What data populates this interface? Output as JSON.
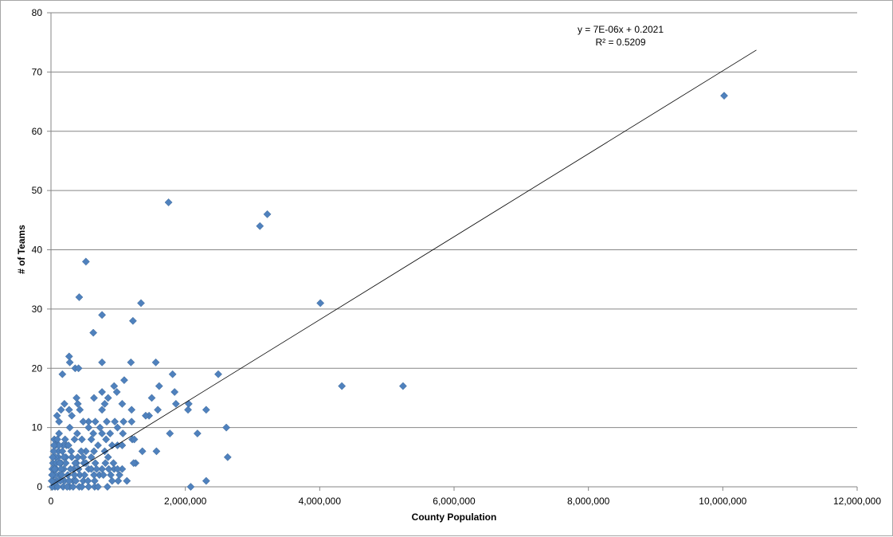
{
  "chart_data": {
    "type": "scatter",
    "xlabel": "County Population",
    "ylabel": "# of Teams",
    "xlim": [
      0,
      12000000
    ],
    "ylim": [
      0,
      80
    ],
    "x_ticks": [
      "0",
      "2,000,000",
      "4,000,000",
      "6,000,000",
      "8,000,000",
      "10,000,000",
      "12,000,000"
    ],
    "y_ticks": [
      "0",
      "10",
      "20",
      "30",
      "40",
      "50",
      "60",
      "70",
      "80"
    ],
    "grid": "horizontal",
    "legend": "none",
    "marker_color": "#4f81bd",
    "trendline": {
      "equation": "y = 7E-06x + 0.2021",
      "r2_label": "R² = 0.5209",
      "slope": 7e-06,
      "intercept": 0.2021,
      "x_range": [
        0,
        10500000
      ]
    },
    "points": [
      [
        10020000,
        66
      ],
      [
        1750000,
        48
      ],
      [
        3220000,
        46
      ],
      [
        3110000,
        44
      ],
      [
        520000,
        38
      ],
      [
        4010000,
        31
      ],
      [
        1340000,
        31
      ],
      [
        420000,
        32
      ],
      [
        760000,
        29
      ],
      [
        1220000,
        28
      ],
      [
        630000,
        26
      ],
      [
        270000,
        22
      ],
      [
        280000,
        21
      ],
      [
        760000,
        21
      ],
      [
        1190000,
        21
      ],
      [
        1560000,
        21
      ],
      [
        360000,
        20
      ],
      [
        410000,
        20
      ],
      [
        170000,
        19
      ],
      [
        1810000,
        19
      ],
      [
        2490000,
        19
      ],
      [
        1090000,
        18
      ],
      [
        940000,
        17
      ],
      [
        1610000,
        17
      ],
      [
        4330000,
        17
      ],
      [
        5240000,
        17
      ],
      [
        760000,
        16
      ],
      [
        980000,
        16
      ],
      [
        1840000,
        16
      ],
      [
        640000,
        15
      ],
      [
        380000,
        15
      ],
      [
        850000,
        15
      ],
      [
        1500000,
        15
      ],
      [
        1060000,
        14
      ],
      [
        2050000,
        14
      ],
      [
        1860000,
        14
      ],
      [
        200000,
        14
      ],
      [
        400000,
        14
      ],
      [
        800000,
        14
      ],
      [
        150000,
        13
      ],
      [
        270000,
        13
      ],
      [
        430000,
        13
      ],
      [
        2040000,
        13
      ],
      [
        2310000,
        13
      ],
      [
        1200000,
        13
      ],
      [
        760000,
        13
      ],
      [
        1590000,
        13
      ],
      [
        1460000,
        12
      ],
      [
        1410000,
        12
      ],
      [
        310000,
        12
      ],
      [
        90000,
        12
      ],
      [
        560000,
        11
      ],
      [
        660000,
        11
      ],
      [
        830000,
        11
      ],
      [
        950000,
        11
      ],
      [
        1080000,
        11
      ],
      [
        1200000,
        11
      ],
      [
        120000,
        11
      ],
      [
        480000,
        11
      ],
      [
        2610000,
        10
      ],
      [
        280000,
        10
      ],
      [
        560000,
        10
      ],
      [
        990000,
        10
      ],
      [
        730000,
        10
      ],
      [
        1770000,
        9
      ],
      [
        2180000,
        9
      ],
      [
        630000,
        9
      ],
      [
        760000,
        9
      ],
      [
        1070000,
        9
      ],
      [
        120000,
        9
      ],
      [
        390000,
        9
      ],
      [
        880000,
        9
      ],
      [
        1210000,
        8
      ],
      [
        460000,
        8
      ],
      [
        820000,
        8
      ],
      [
        1240000,
        8
      ],
      [
        600000,
        8
      ],
      [
        350000,
        8
      ],
      [
        50000,
        8
      ],
      [
        990000,
        7
      ],
      [
        700000,
        7
      ],
      [
        230000,
        7
      ],
      [
        910000,
        7
      ],
      [
        70000,
        7
      ],
      [
        180000,
        7
      ],
      [
        1060000,
        7
      ],
      [
        1360000,
        6
      ],
      [
        1570000,
        6
      ],
      [
        800000,
        6
      ],
      [
        640000,
        6
      ],
      [
        520000,
        6
      ],
      [
        110000,
        6
      ],
      [
        300000,
        6
      ],
      [
        450000,
        6
      ],
      [
        2630000,
        5
      ],
      [
        600000,
        5
      ],
      [
        850000,
        5
      ],
      [
        110000,
        5
      ],
      [
        220000,
        5
      ],
      [
        400000,
        5
      ],
      [
        1260000,
        4
      ],
      [
        1230000,
        4
      ],
      [
        810000,
        4
      ],
      [
        660000,
        4
      ],
      [
        490000,
        4
      ],
      [
        380000,
        4
      ],
      [
        150000,
        4
      ],
      [
        30000,
        4
      ],
      [
        930000,
        4
      ],
      [
        940000,
        3
      ],
      [
        1060000,
        3
      ],
      [
        760000,
        3
      ],
      [
        560000,
        3
      ],
      [
        340000,
        3
      ],
      [
        190000,
        3
      ],
      [
        80000,
        3
      ],
      [
        990000,
        3
      ],
      [
        1020000,
        2
      ],
      [
        890000,
        2
      ],
      [
        720000,
        2
      ],
      [
        640000,
        2
      ],
      [
        430000,
        2
      ],
      [
        250000,
        2
      ],
      [
        120000,
        2
      ],
      [
        40000,
        2
      ],
      [
        2310000,
        1
      ],
      [
        1000000,
        1
      ],
      [
        1130000,
        1
      ],
      [
        910000,
        1
      ],
      [
        650000,
        1
      ],
      [
        480000,
        1
      ],
      [
        330000,
        1
      ],
      [
        200000,
        1
      ],
      [
        90000,
        1
      ],
      [
        2080000,
        0
      ],
      [
        840000,
        0
      ],
      [
        650000,
        0
      ],
      [
        700000,
        0
      ],
      [
        560000,
        0
      ],
      [
        420000,
        0
      ],
      [
        280000,
        0
      ],
      [
        180000,
        0
      ],
      [
        60000,
        0
      ],
      [
        20000,
        0
      ],
      [
        100000,
        0
      ],
      [
        30000,
        1
      ],
      [
        60000,
        2
      ],
      [
        150000,
        3
      ],
      [
        220000,
        4
      ],
      [
        310000,
        5
      ],
      [
        350000,
        2
      ],
      [
        270000,
        1
      ],
      [
        140000,
        1
      ],
      [
        20000,
        3
      ],
      [
        70000,
        5
      ],
      [
        170000,
        6
      ],
      [
        260000,
        7
      ],
      [
        360000,
        4
      ],
      [
        410000,
        3
      ],
      [
        500000,
        2
      ],
      [
        550000,
        1
      ],
      [
        600000,
        3
      ],
      [
        480000,
        5
      ],
      [
        120000,
        7
      ],
      [
        210000,
        8
      ],
      [
        40000,
        6
      ],
      [
        80000,
        4
      ],
      [
        160000,
        2
      ],
      [
        240000,
        0
      ],
      [
        330000,
        0
      ],
      [
        460000,
        0
      ],
      [
        520000,
        4
      ],
      [
        680000,
        3
      ],
      [
        780000,
        2
      ],
      [
        860000,
        3
      ],
      [
        10000,
        1
      ],
      [
        15000,
        2
      ],
      [
        25000,
        5
      ],
      [
        45000,
        7
      ],
      [
        55000,
        3
      ],
      [
        95000,
        8
      ],
      [
        130000,
        4
      ],
      [
        190000,
        5
      ],
      [
        290000,
        3
      ],
      [
        370000,
        1
      ]
    ]
  }
}
